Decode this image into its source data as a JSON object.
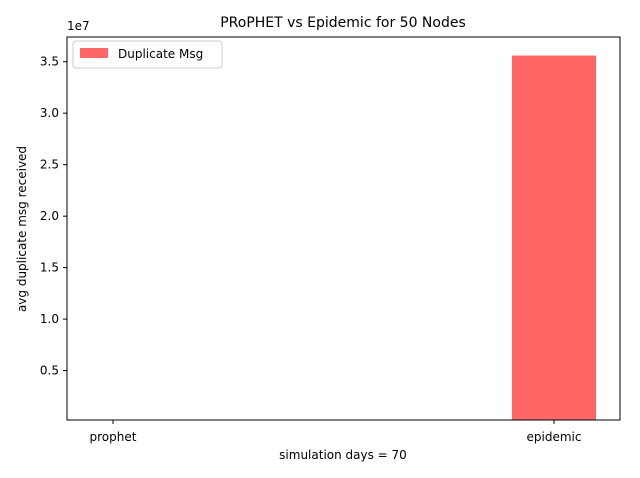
{
  "chart_data": {
    "type": "bar",
    "title": "PRoPHET vs Epidemic for 50 Nodes",
    "xlabel": "simulation days = 70",
    "ylabel": "avg duplicate msg received",
    "y_multiplier_label": "1e7",
    "categories": [
      "prophet",
      "epidemic"
    ],
    "series": [
      {
        "name": "Duplicate Msg",
        "values": [
          0,
          35600000
        ],
        "color": "#ff6666"
      }
    ],
    "ylim": [
      200000,
      37400000
    ],
    "yticks": [
      5000000,
      10000000,
      15000000,
      20000000,
      25000000,
      30000000,
      35000000
    ],
    "ytick_labels": [
      "0.5",
      "1.0",
      "1.5",
      "2.0",
      "2.5",
      "3.0",
      "3.5"
    ],
    "legend_position": "top-left",
    "grid": false
  }
}
